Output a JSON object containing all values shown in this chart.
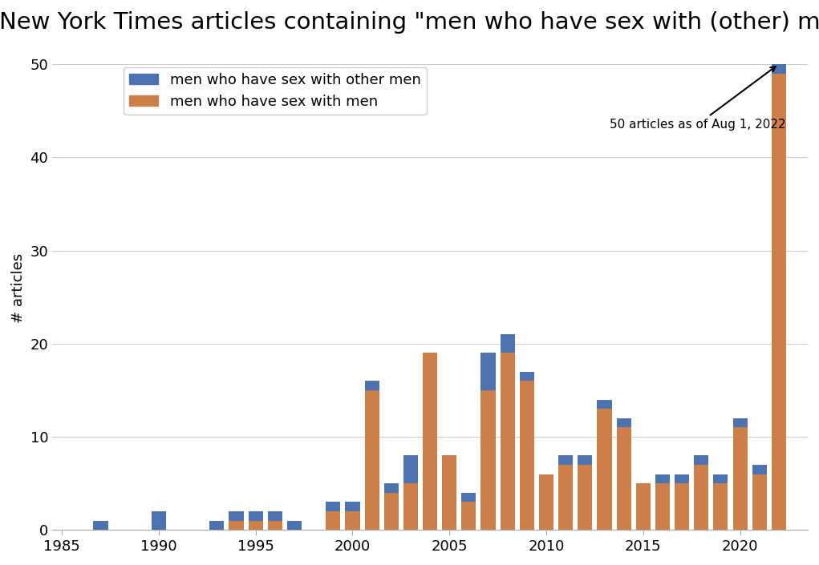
{
  "title": "New York Times articles containing \"men who have sex with (other) men\"",
  "ylabel": "# articles",
  "years": [
    1987,
    1988,
    1989,
    1990,
    1991,
    1992,
    1993,
    1994,
    1995,
    1996,
    1997,
    1998,
    1999,
    2000,
    2001,
    2002,
    2003,
    2004,
    2005,
    2006,
    2007,
    2008,
    2009,
    2010,
    2011,
    2012,
    2013,
    2014,
    2015,
    2016,
    2017,
    2018,
    2019,
    2020,
    2021,
    2022
  ],
  "msm_other": [
    1,
    0,
    0,
    2,
    0,
    0,
    1,
    1,
    1,
    1,
    1,
    0,
    1,
    1,
    1,
    1,
    3,
    0,
    0,
    1,
    4,
    2,
    1,
    0,
    1,
    1,
    1,
    1,
    0,
    1,
    1,
    1,
    1,
    1,
    1,
    1
  ],
  "msm": [
    0,
    0,
    0,
    0,
    0,
    0,
    0,
    1,
    1,
    1,
    0,
    0,
    2,
    2,
    15,
    4,
    5,
    19,
    8,
    3,
    15,
    19,
    16,
    6,
    7,
    7,
    13,
    11,
    5,
    5,
    5,
    7,
    5,
    11,
    6,
    49
  ],
  "color_msm_other": "#4c72b0",
  "color_msm": "#cd7f4a",
  "legend_msm_other": "men who have sex with other men",
  "legend_msm": "men who have sex with men",
  "annotation_text": "50 articles as of Aug 1, 2022",
  "xlim": [
    1984.5,
    2023.5
  ],
  "ylim": [
    0,
    52
  ],
  "yticks": [
    0,
    10,
    20,
    30,
    40,
    50
  ],
  "xticks": [
    1985,
    1990,
    1995,
    2000,
    2005,
    2010,
    2015,
    2020
  ],
  "background_color": "#ffffff",
  "title_fontsize": 21,
  "axis_label_fontsize": 13,
  "tick_fontsize": 13,
  "legend_fontsize": 13,
  "bar_width": 0.75
}
